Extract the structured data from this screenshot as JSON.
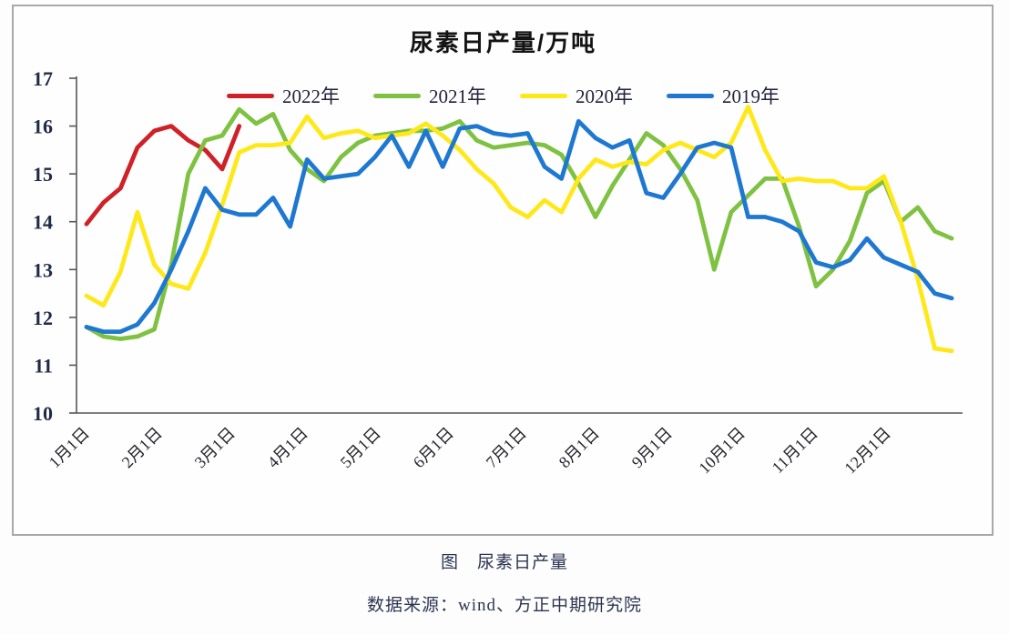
{
  "chart_data": {
    "type": "line",
    "title": "尿素日产量/万吨",
    "ylim": [
      10,
      17
    ],
    "y_ticks": [
      17,
      16,
      15,
      14,
      13,
      12,
      11,
      10
    ],
    "grid": false,
    "legend_position": "top",
    "x_unit": "week-of-year",
    "x_tick_labels": [
      "1月1日",
      "2月1日",
      "3月1日",
      "4月1日",
      "5月1日",
      "6月1日",
      "7月1日",
      "8月1日",
      "9月1日",
      "10月1日",
      "11月1日",
      "12月1日"
    ],
    "series": [
      {
        "name": "2022年",
        "color": "#cf2128",
        "values": [
          13.95,
          14.4,
          14.7,
          15.55,
          15.9,
          16.0,
          15.7,
          15.5,
          15.1,
          16.0
        ]
      },
      {
        "name": "2021年",
        "color": "#7fc241",
        "values": [
          11.8,
          11.6,
          11.55,
          11.6,
          11.75,
          13.1,
          15.0,
          15.7,
          15.8,
          16.35,
          16.05,
          16.25,
          15.5,
          15.1,
          14.85,
          15.35,
          15.65,
          15.8,
          15.85,
          15.9,
          15.9,
          15.95,
          16.1,
          15.7,
          15.55,
          15.6,
          15.65,
          15.6,
          15.4,
          14.8,
          14.1,
          14.75,
          15.3,
          15.85,
          15.6,
          15.1,
          14.45,
          13.0,
          14.2,
          14.55,
          14.9,
          14.9,
          13.9,
          12.65,
          13.0,
          13.6,
          14.6,
          14.85,
          14.0,
          14.3,
          13.8,
          13.65
        ]
      },
      {
        "name": "2020年",
        "color": "#ffe81a",
        "values": [
          12.45,
          12.25,
          12.95,
          14.2,
          13.1,
          12.7,
          12.6,
          13.35,
          14.35,
          15.45,
          15.6,
          15.6,
          15.65,
          16.2,
          15.75,
          15.85,
          15.9,
          15.75,
          15.8,
          15.85,
          16.05,
          15.8,
          15.5,
          15.1,
          14.8,
          14.3,
          14.1,
          14.45,
          14.2,
          14.9,
          15.3,
          15.15,
          15.25,
          15.2,
          15.5,
          15.65,
          15.5,
          15.35,
          15.65,
          16.4,
          15.5,
          14.85,
          14.9,
          14.85,
          14.85,
          14.7,
          14.7,
          14.95,
          14.0,
          12.8,
          11.35,
          11.3
        ]
      },
      {
        "name": "2019年",
        "color": "#1e78d2",
        "values": [
          11.8,
          11.7,
          11.7,
          11.85,
          12.3,
          13.0,
          13.8,
          14.7,
          14.25,
          14.15,
          14.15,
          14.5,
          13.9,
          15.3,
          14.9,
          14.95,
          15.0,
          15.35,
          15.8,
          15.15,
          15.9,
          15.15,
          15.95,
          16.0,
          15.85,
          15.8,
          15.85,
          15.15,
          14.9,
          16.1,
          15.75,
          15.55,
          15.7,
          14.6,
          14.5,
          15.0,
          15.55,
          15.65,
          15.55,
          14.1,
          14.1,
          14.0,
          13.8,
          13.15,
          13.05,
          13.2,
          13.65,
          13.25,
          13.1,
          12.95,
          12.5,
          12.4
        ]
      }
    ]
  },
  "caption": "图　尿素日产量",
  "source": "数据来源：wind、方正中期研究院"
}
